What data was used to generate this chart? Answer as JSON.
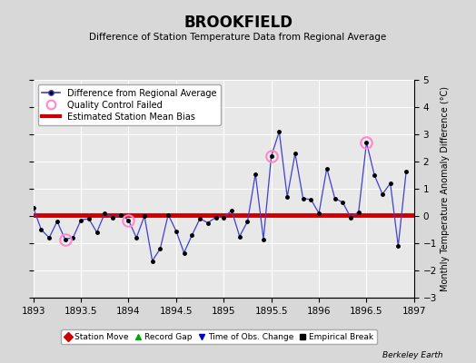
{
  "title": "BROOKFIELD",
  "subtitle": "Difference of Station Temperature Data from Regional Average",
  "ylabel_right": "Monthly Temperature Anomaly Difference (°C)",
  "xlim": [
    1893,
    1897
  ],
  "ylim": [
    -3,
    5
  ],
  "yticks": [
    -3,
    -2,
    -1,
    0,
    1,
    2,
    3,
    4,
    5
  ],
  "xticks": [
    1893,
    1893.5,
    1894,
    1894.5,
    1895,
    1895.5,
    1896,
    1896.5,
    1897
  ],
  "xtick_labels": [
    "1893",
    "1893.5",
    "1894",
    "1894.5",
    "1895",
    "1895.5",
    "1896",
    "1896.5",
    "1897"
  ],
  "bias_y": 0.05,
  "line_color": "#4040cc",
  "bias_color": "#cc0000",
  "marker_color": "#000000",
  "qc_color": "#ff88cc",
  "background_color": "#d8d8d8",
  "plot_background": "#e8e8e8",
  "x_data": [
    1893.0,
    1893.083,
    1893.167,
    1893.25,
    1893.333,
    1893.417,
    1893.5,
    1893.583,
    1893.667,
    1893.75,
    1893.833,
    1893.917,
    1894.0,
    1894.083,
    1894.167,
    1894.25,
    1894.333,
    1894.417,
    1894.5,
    1894.583,
    1894.667,
    1894.75,
    1894.833,
    1894.917,
    1895.0,
    1895.083,
    1895.167,
    1895.25,
    1895.333,
    1895.417,
    1895.5,
    1895.583,
    1895.667,
    1895.75,
    1895.833,
    1895.917,
    1896.0,
    1896.083,
    1896.167,
    1896.25,
    1896.333,
    1896.417,
    1896.5,
    1896.583,
    1896.667,
    1896.75,
    1896.833,
    1896.917
  ],
  "y_data": [
    0.3,
    -0.5,
    -0.8,
    -0.2,
    -0.85,
    -0.8,
    -0.15,
    -0.1,
    -0.6,
    0.1,
    -0.05,
    0.05,
    -0.15,
    -0.8,
    0.0,
    -1.65,
    -1.2,
    0.05,
    -0.55,
    -1.35,
    -0.7,
    -0.1,
    -0.25,
    -0.05,
    -0.05,
    0.2,
    -0.75,
    -0.2,
    1.55,
    -0.85,
    2.2,
    3.1,
    0.7,
    2.3,
    0.65,
    0.6,
    0.1,
    1.75,
    0.65,
    0.5,
    -0.05,
    0.15,
    2.7,
    1.5,
    0.8,
    1.2,
    -1.1,
    1.65
  ],
  "qc_failed_indices": [
    4,
    12,
    30,
    42
  ],
  "legend_items": [
    {
      "label": "Difference from Regional Average",
      "type": "line"
    },
    {
      "label": "Quality Control Failed",
      "type": "qc"
    },
    {
      "label": "Estimated Station Mean Bias",
      "type": "bias"
    }
  ],
  "bottom_legend": [
    {
      "label": "Station Move",
      "marker": "D",
      "color": "#cc0000"
    },
    {
      "label": "Record Gap",
      "marker": "^",
      "color": "#00aa00"
    },
    {
      "label": "Time of Obs. Change",
      "marker": "v",
      "color": "#0000cc"
    },
    {
      "label": "Empirical Break",
      "marker": "s",
      "color": "#000000"
    }
  ],
  "attribution": "Berkeley Earth"
}
